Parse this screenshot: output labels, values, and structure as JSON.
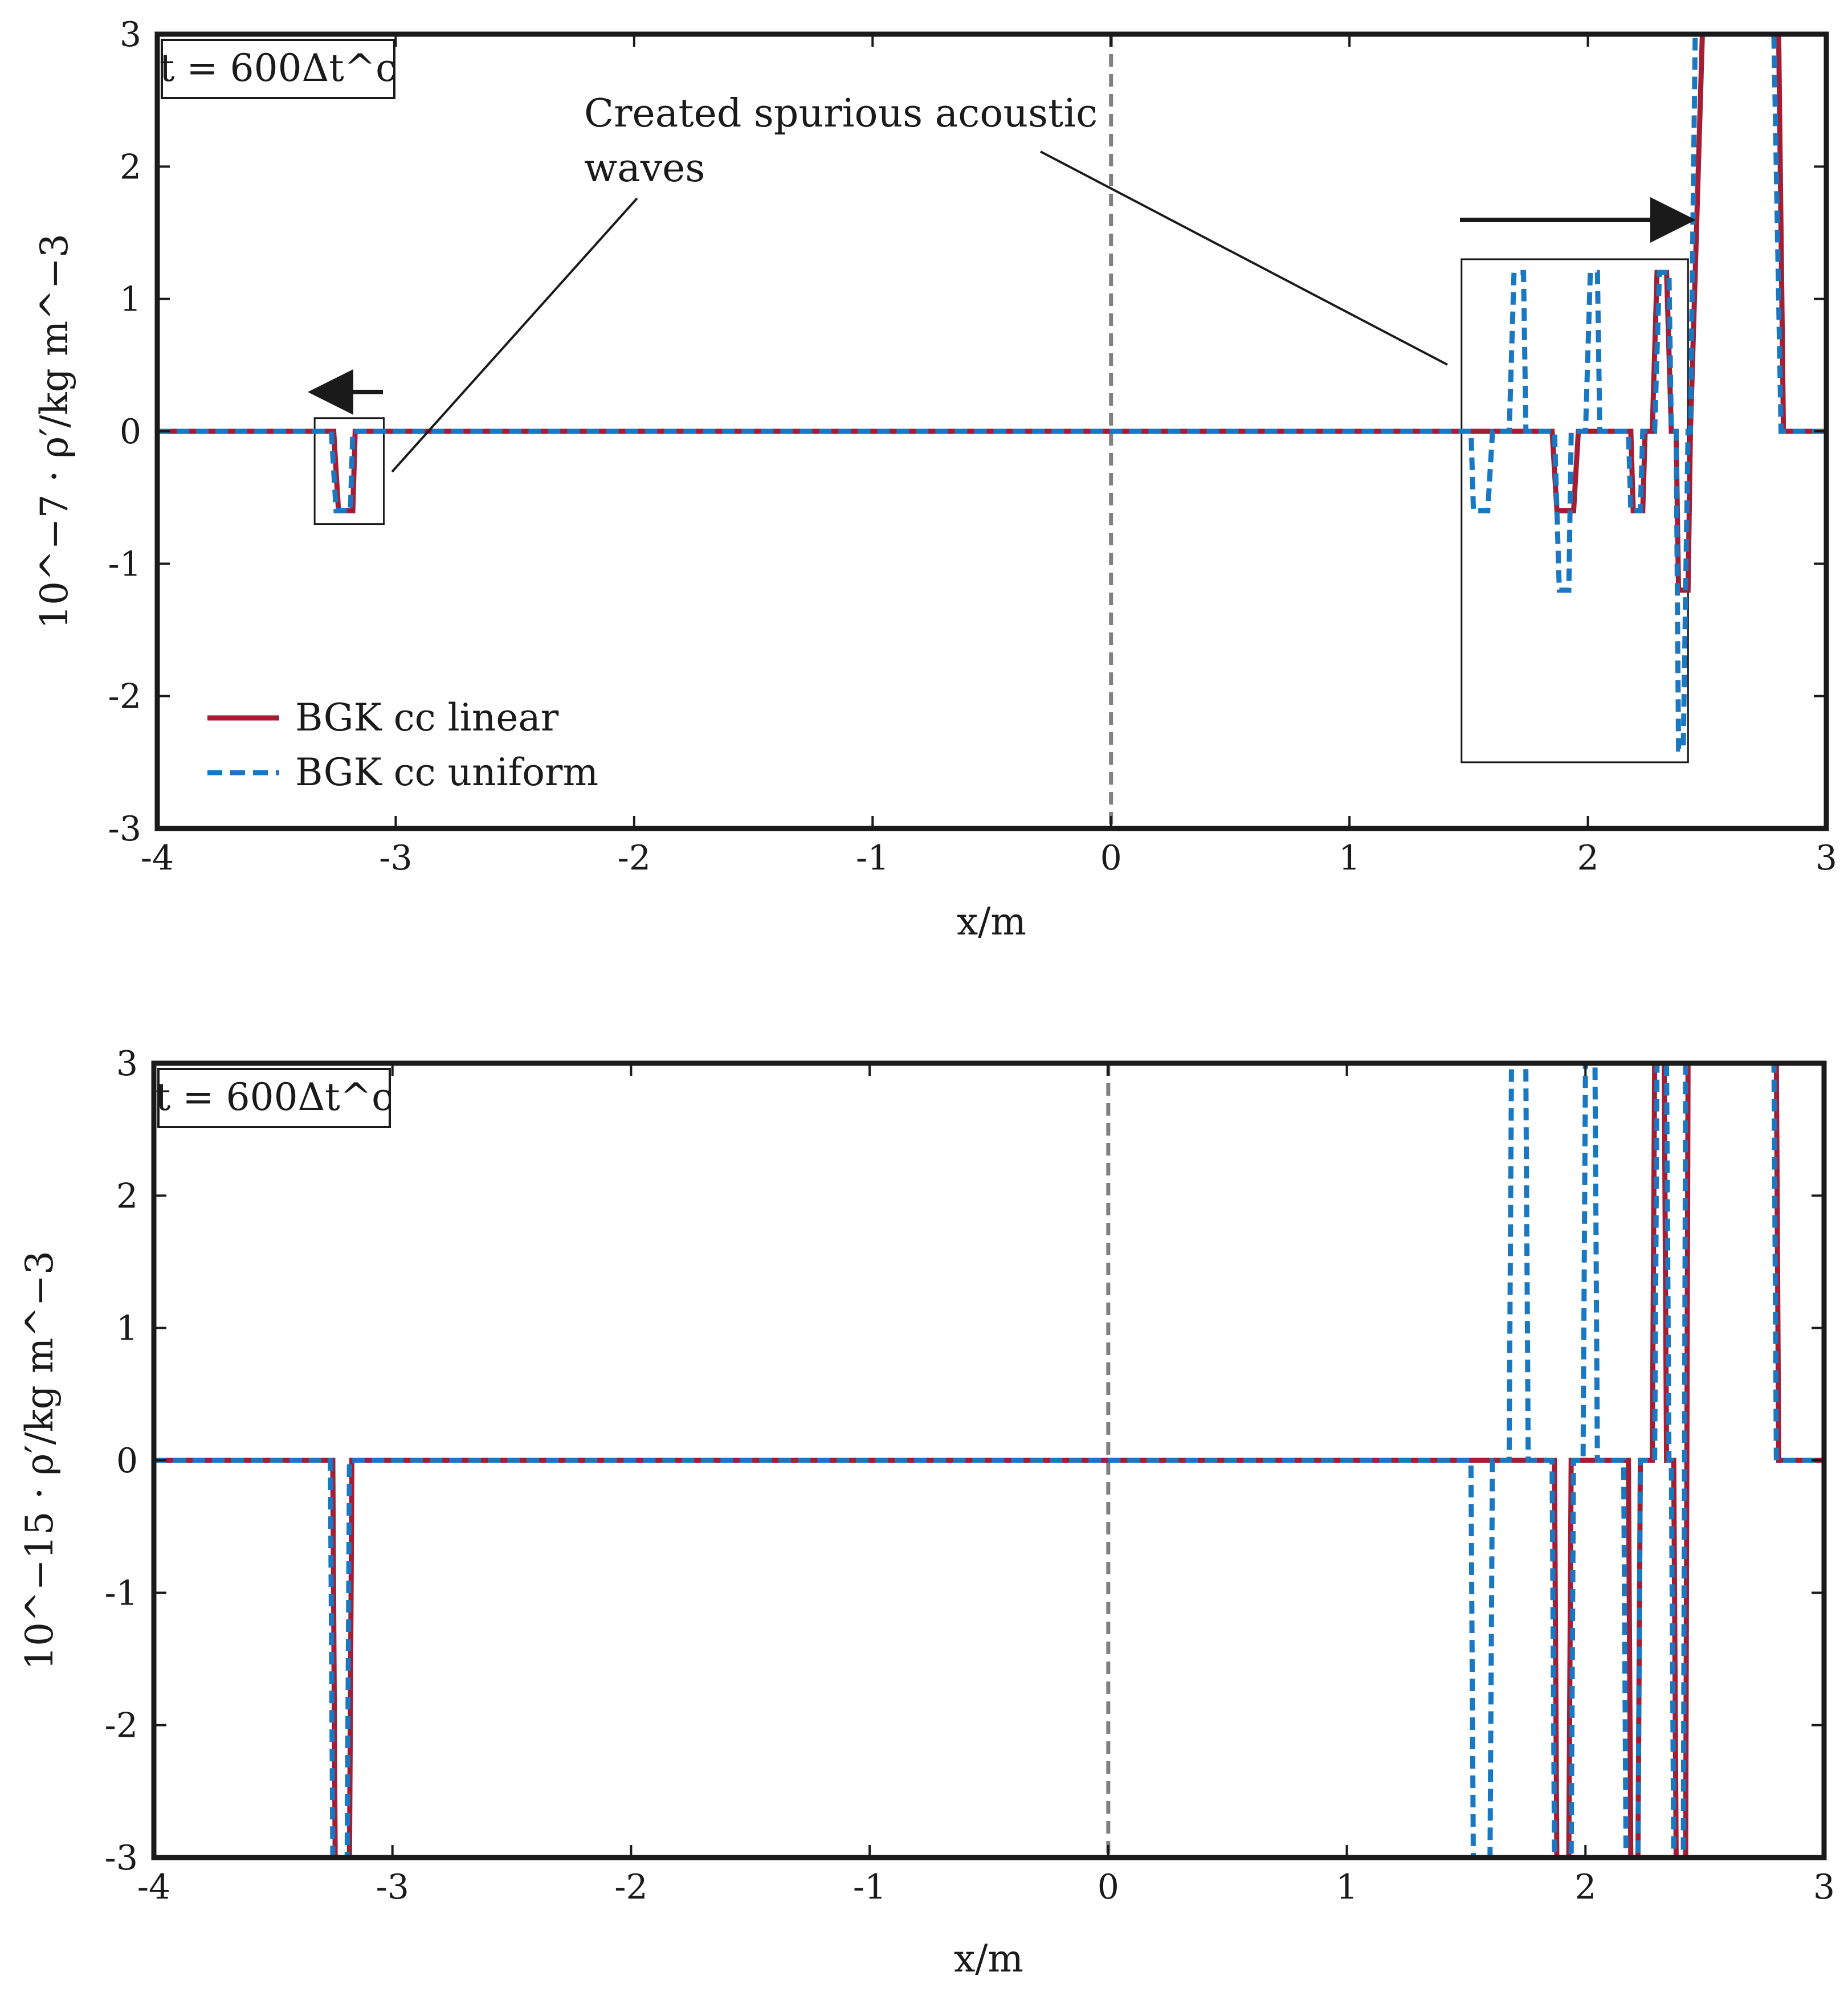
{
  "colors": {
    "linear": "#a51d32",
    "uniform": "#1a77c2",
    "frame": "#1a1a1a",
    "centerline": "#808080",
    "background": "#ffffff"
  },
  "chart_data": [
    {
      "type": "line",
      "panel": "top",
      "time_label": "t = 600Δt^c",
      "xlabel": "x/m",
      "ylabel": "10^−7 · ρ′/kg m^−3",
      "xlim": [
        -4,
        3
      ],
      "ylim": [
        -3,
        3
      ],
      "xticks": [
        "-4",
        "-3",
        "-2",
        "-1",
        "0",
        "1",
        "2",
        "3"
      ],
      "yticks": [
        "-3",
        "-2",
        "-1",
        "0",
        "1",
        "2",
        "3"
      ],
      "center_line_x": 0,
      "legend": {
        "position": "bottom-left",
        "entries": [
          "BGK cc linear",
          "BGK cc uniform"
        ]
      },
      "annotation": {
        "line1": "Created spurious acoustic",
        "line2": "waves"
      },
      "direction_arrows": [
        "left",
        "right"
      ],
      "highlight_boxes": [
        {
          "x": [
            -3.34,
            -3.05
          ],
          "y": [
            -0.7,
            0.1
          ]
        },
        {
          "x": [
            1.47,
            2.42
          ],
          "y": [
            -2.5,
            1.3
          ]
        }
      ],
      "series": [
        {
          "name": "BGK cc linear",
          "style": "solid",
          "x": [
            -4,
            -3.26,
            -3.24,
            -3.18,
            -3.17,
            1.85,
            1.87,
            1.94,
            1.96,
            2.18,
            2.19,
            2.23,
            2.24,
            2.27,
            2.29,
            2.33,
            2.35,
            2.37,
            2.38,
            2.42,
            2.43,
            2.45,
            2.48,
            2.8,
            2.82,
            3
          ],
          "values": [
            0,
            0,
            -0.6,
            -0.6,
            0,
            0,
            -0.6,
            -0.6,
            0,
            0,
            -0.6,
            -0.6,
            0,
            0,
            1.2,
            1.2,
            0,
            0,
            -1.2,
            -1.2,
            0,
            1.2,
            3,
            3,
            0,
            0
          ]
        },
        {
          "name": "BGK cc uniform",
          "style": "dashed",
          "x": [
            -4,
            -3.27,
            -3.25,
            -3.19,
            -3.18,
            1.51,
            1.52,
            1.58,
            1.6,
            1.67,
            1.69,
            1.73,
            1.74,
            1.86,
            1.88,
            1.92,
            1.93,
            1.99,
            2.01,
            2.04,
            2.05,
            2.17,
            2.18,
            2.22,
            2.23,
            2.28,
            2.3,
            2.34,
            2.35,
            2.37,
            2.38,
            2.4,
            2.42,
            2.43,
            2.45,
            2.78,
            2.81,
            3
          ],
          "values": [
            0,
            0,
            -0.6,
            -0.6,
            0,
            0,
            -0.6,
            -0.6,
            0,
            0,
            1.2,
            1.2,
            0,
            0,
            -1.2,
            -1.2,
            0,
            0,
            1.2,
            1.2,
            0,
            0,
            -0.6,
            -0.6,
            0,
            0,
            1.2,
            1.2,
            0,
            0,
            -2.4,
            -2.4,
            0,
            0,
            3,
            3,
            0,
            0
          ]
        }
      ]
    },
    {
      "type": "line",
      "panel": "bottom",
      "time_label": "t = 600Δt^c",
      "xlabel": "x/m",
      "ylabel": "10^−15 · ρ′/kg m^−3",
      "xlim": [
        -4,
        3
      ],
      "ylim": [
        -3,
        3
      ],
      "xticks": [
        "-4",
        "-3",
        "-2",
        "-1",
        "0",
        "1",
        "2",
        "3"
      ],
      "yticks": [
        "-3",
        "-2",
        "-1",
        "0",
        "1",
        "2",
        "3"
      ],
      "center_line_x": 0,
      "series": [
        {
          "name": "BGK cc linear",
          "style": "solid",
          "x": [
            -4,
            -3.25,
            -3.24,
            -3.18,
            -3.17,
            1.87,
            1.88,
            1.93,
            1.94,
            2.18,
            2.19,
            2.22,
            2.23,
            2.28,
            2.29,
            2.33,
            2.34,
            2.37,
            2.38,
            2.42,
            2.43,
            2.8,
            2.81,
            3
          ],
          "values": [
            0,
            0,
            -3,
            -3,
            0,
            0,
            -3,
            -3,
            0,
            0,
            -3,
            -3,
            0,
            0,
            3,
            3,
            0,
            0,
            -3,
            -3,
            3,
            3,
            0,
            0
          ]
        },
        {
          "name": "BGK cc uniform",
          "style": "dashed",
          "x": [
            -4,
            -3.26,
            -3.25,
            -3.19,
            -3.18,
            1.52,
            1.53,
            1.6,
            1.61,
            1.68,
            1.69,
            1.75,
            1.76,
            1.86,
            1.87,
            1.94,
            1.95,
            1.99,
            2.0,
            2.04,
            2.05,
            2.16,
            2.17,
            2.22,
            2.23,
            2.29,
            2.3,
            2.34,
            2.35,
            2.36,
            2.37,
            2.41,
            2.42,
            2.79,
            2.8,
            3
          ],
          "values": [
            0,
            0,
            -3,
            -3,
            0,
            0,
            -3,
            -3,
            0,
            0,
            3,
            3,
            0,
            0,
            -3,
            -3,
            0,
            0,
            3,
            3,
            0,
            0,
            -3,
            -3,
            0,
            0,
            3,
            3,
            0,
            0,
            -3,
            -3,
            3,
            3,
            0,
            0
          ]
        }
      ]
    }
  ]
}
